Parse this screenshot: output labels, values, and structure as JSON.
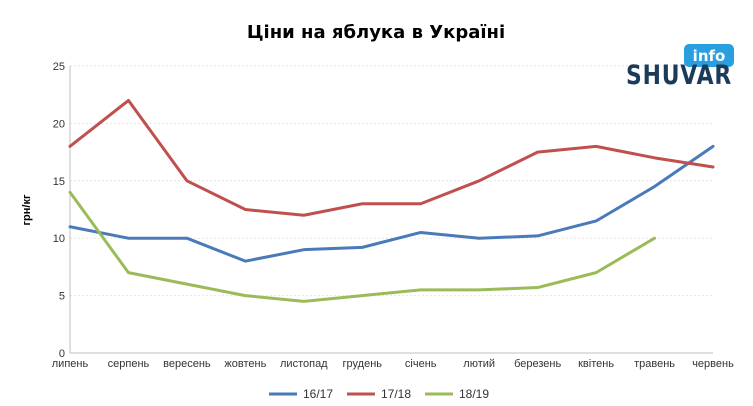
{
  "logo": {
    "text_main": "SHUVAR",
    "text_info": "info",
    "colors": {
      "dark": "#1a3b5c",
      "accent": "#2a9fe0"
    }
  },
  "chart_data": {
    "type": "line",
    "title": "Ціни на яблука в Україні",
    "xlabel": "",
    "ylabel": "грн/кг",
    "ylim": [
      0,
      25
    ],
    "yticks": [
      0,
      5,
      10,
      15,
      20,
      25
    ],
    "grid": true,
    "legend": "bottom",
    "categories": [
      "липень",
      "серпень",
      "вересень",
      "жовтень",
      "листопад",
      "грудень",
      "січень",
      "лютий",
      "березень",
      "квітень",
      "травень",
      "червень"
    ],
    "series": [
      {
        "name": "16/17",
        "color": "#4a7ab8",
        "values": [
          11,
          10,
          10,
          8,
          9,
          9.2,
          10.5,
          10,
          10.2,
          11.5,
          14.5,
          18
        ]
      },
      {
        "name": "17/18",
        "color": "#c0504d",
        "values": [
          18,
          22,
          15,
          12.5,
          12,
          13,
          13,
          15,
          17.5,
          18,
          17,
          16.2
        ]
      },
      {
        "name": "18/19",
        "color": "#9bbb59",
        "values": [
          14,
          7,
          6,
          5,
          4.5,
          5,
          5.5,
          5.5,
          5.7,
          7,
          10,
          null
        ]
      }
    ]
  }
}
